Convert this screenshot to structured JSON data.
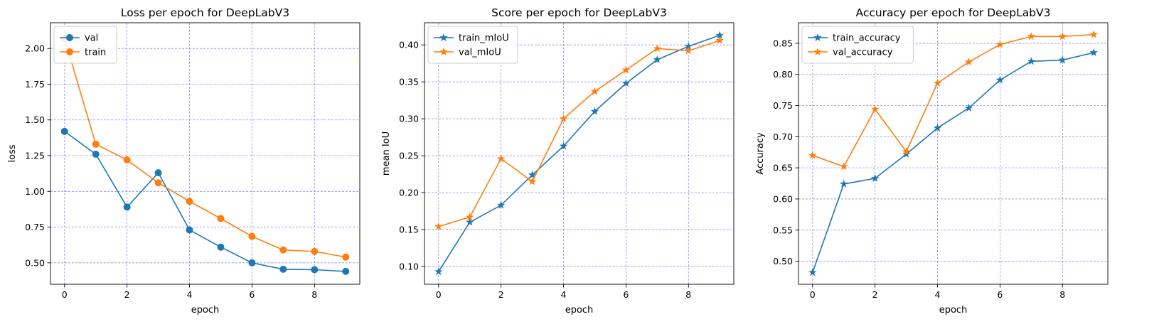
{
  "chart_data": [
    {
      "type": "line",
      "title": "Loss per epoch for DeepLabV3",
      "xlabel": "epoch",
      "ylabel": "loss",
      "x": [
        0,
        1,
        2,
        3,
        4,
        5,
        6,
        7,
        8,
        9
      ],
      "xlim": [
        -0.45,
        9.45
      ],
      "ylim": [
        0.35,
        2.18
      ],
      "xticks": [
        0,
        2,
        4,
        6,
        8
      ],
      "xtick_labels": [
        "0",
        "2",
        "4",
        "6",
        "8"
      ],
      "yticks": [
        0.5,
        0.75,
        1.0,
        1.25,
        1.5,
        1.75,
        2.0
      ],
      "ytick_labels": [
        "0.50",
        "0.75",
        "1.00",
        "1.25",
        "1.50",
        "1.75",
        "2.00"
      ],
      "grid": true,
      "legend": "upper-left",
      "series": [
        {
          "name": "val",
          "marker": "circle",
          "color": "#1f77b4",
          "values": [
            1.42,
            1.26,
            0.89,
            1.13,
            0.73,
            0.61,
            0.5,
            0.455,
            0.452,
            0.44
          ]
        },
        {
          "name": "train",
          "marker": "circle",
          "color": "#ff7f0e",
          "values": [
            2.07,
            1.33,
            1.22,
            1.06,
            0.93,
            0.81,
            0.685,
            0.59,
            0.58,
            0.54
          ]
        }
      ]
    },
    {
      "type": "line",
      "title": "Score per epoch for DeepLabV3",
      "xlabel": "epoch",
      "ylabel": "mean IoU",
      "x": [
        0,
        1,
        2,
        3,
        4,
        5,
        6,
        7,
        8,
        9
      ],
      "xlim": [
        -0.45,
        9.45
      ],
      "ylim": [
        0.076,
        0.43
      ],
      "xticks": [
        0,
        2,
        4,
        6,
        8
      ],
      "xtick_labels": [
        "0",
        "2",
        "4",
        "6",
        "8"
      ],
      "yticks": [
        0.1,
        0.15,
        0.2,
        0.25,
        0.3,
        0.35,
        0.4
      ],
      "ytick_labels": [
        "0.10",
        "0.15",
        "0.20",
        "0.25",
        "0.30",
        "0.35",
        "0.40"
      ],
      "grid": true,
      "legend": "upper-left",
      "series": [
        {
          "name": "train_mIoU",
          "marker": "star",
          "color": "#1f77b4",
          "values": [
            0.093,
            0.16,
            0.183,
            0.224,
            0.263,
            0.31,
            0.348,
            0.38,
            0.398,
            0.413
          ]
        },
        {
          "name": "val_mIoU",
          "marker": "star",
          "color": "#ff7f0e",
          "values": [
            0.154,
            0.167,
            0.246,
            0.215,
            0.3,
            0.337,
            0.366,
            0.395,
            0.392,
            0.406
          ]
        }
      ]
    },
    {
      "type": "line",
      "title": "Accuracy per epoch for DeepLabV3",
      "xlabel": "epoch",
      "ylabel": "Accuracy",
      "x": [
        0,
        1,
        2,
        3,
        4,
        5,
        6,
        7,
        8,
        9
      ],
      "xlim": [
        -0.45,
        9.45
      ],
      "ylim": [
        0.463,
        0.883
      ],
      "xticks": [
        0,
        2,
        4,
        6,
        8
      ],
      "xtick_labels": [
        "0",
        "2",
        "4",
        "6",
        "8"
      ],
      "yticks": [
        0.5,
        0.55,
        0.6,
        0.65,
        0.7,
        0.75,
        0.8,
        0.85
      ],
      "ytick_labels": [
        "0.50",
        "0.55",
        "0.60",
        "0.65",
        "0.70",
        "0.75",
        "0.80",
        "0.85"
      ],
      "grid": true,
      "legend": "upper-left",
      "series": [
        {
          "name": "train_accuracy",
          "marker": "star",
          "color": "#1f77b4",
          "values": [
            0.482,
            0.624,
            0.633,
            0.672,
            0.714,
            0.746,
            0.791,
            0.821,
            0.823,
            0.835
          ]
        },
        {
          "name": "val_accuracy",
          "marker": "star",
          "color": "#ff7f0e",
          "values": [
            0.67,
            0.652,
            0.744,
            0.676,
            0.786,
            0.82,
            0.848,
            0.861,
            0.861,
            0.864
          ]
        }
      ]
    }
  ]
}
